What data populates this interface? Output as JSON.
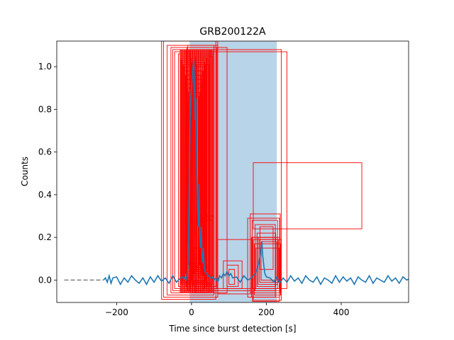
{
  "chart_data": {
    "type": "line",
    "title": "GRB200122A",
    "xlabel": "Time since burst detection [s]",
    "ylabel": "Counts",
    "xlim": [
      -360,
      580
    ],
    "ylim": [
      -0.105,
      1.12
    ],
    "x_ticks": [
      -200,
      0,
      200,
      400
    ],
    "x_tick_labels": [
      "−200",
      "0",
      "200",
      "400"
    ],
    "y_ticks": [
      0.0,
      0.2,
      0.4,
      0.6,
      0.8,
      1.0
    ],
    "y_tick_labels": [
      "0.0",
      "0.2",
      "0.4",
      "0.6",
      "0.8",
      "1.0"
    ],
    "grid": false,
    "legend": "none",
    "shaded_interval": {
      "x": [
        -5,
        228
      ],
      "color": "#b8d4e8"
    },
    "baseline": {
      "x": [
        -340,
        -235
      ],
      "y": 0,
      "style": "dashed",
      "color": "#808080"
    },
    "series": [
      {
        "color": "#1f77b4",
        "points": [
          [
            -235,
            0.0
          ],
          [
            -230,
            0.01
          ],
          [
            -225,
            -0.01
          ],
          [
            -220,
            0.02
          ],
          [
            -215,
            -0.015
          ],
          [
            -210,
            0.01
          ],
          [
            -200,
            0.015
          ],
          [
            -190,
            -0.02
          ],
          [
            -180,
            0.01
          ],
          [
            -170,
            -0.01
          ],
          [
            -160,
            0.02
          ],
          [
            -150,
            0.0
          ],
          [
            -140,
            -0.015
          ],
          [
            -130,
            0.01
          ],
          [
            -120,
            -0.02
          ],
          [
            -110,
            0.015
          ],
          [
            -100,
            -0.01
          ],
          [
            -90,
            0.02
          ],
          [
            -80,
            -0.005
          ],
          [
            -70,
            0.01
          ],
          [
            -60,
            -0.015
          ],
          [
            -50,
            0.02
          ],
          [
            -40,
            -0.01
          ],
          [
            -30,
            0.01
          ],
          [
            -20,
            0.015
          ],
          [
            -15,
            0.0
          ],
          [
            -12,
            0.02
          ],
          [
            -10,
            0.05
          ],
          [
            -8,
            0.2
          ],
          [
            -6,
            0.45
          ],
          [
            -4,
            0.7
          ],
          [
            -2,
            0.85
          ],
          [
            0,
            0.9
          ],
          [
            2,
            0.95
          ],
          [
            4,
            1.0
          ],
          [
            6,
            1.03
          ],
          [
            8,
            0.9
          ],
          [
            10,
            0.75
          ],
          [
            12,
            0.85
          ],
          [
            14,
            0.6
          ],
          [
            16,
            0.35
          ],
          [
            18,
            0.25
          ],
          [
            20,
            0.45
          ],
          [
            22,
            0.2
          ],
          [
            24,
            0.15
          ],
          [
            26,
            0.25
          ],
          [
            28,
            0.12
          ],
          [
            30,
            0.08
          ],
          [
            32,
            0.15
          ],
          [
            34,
            0.06
          ],
          [
            36,
            0.04
          ],
          [
            40,
            0.03
          ],
          [
            45,
            0.02
          ],
          [
            50,
            0.01
          ],
          [
            55,
            0.015
          ],
          [
            60,
            0.0
          ],
          [
            65,
            0.01
          ],
          [
            70,
            -0.01
          ],
          [
            75,
            0.02
          ],
          [
            80,
            0.01
          ],
          [
            85,
            0.03
          ],
          [
            90,
            0.02
          ],
          [
            95,
            0.04
          ],
          [
            100,
            0.02
          ],
          [
            105,
            0.03
          ],
          [
            110,
            0.01
          ],
          [
            120,
            0.015
          ],
          [
            130,
            -0.01
          ],
          [
            140,
            0.02
          ],
          [
            150,
            0.0
          ],
          [
            160,
            0.01
          ],
          [
            165,
            0.02
          ],
          [
            170,
            0.03
          ],
          [
            175,
            0.05
          ],
          [
            180,
            0.08
          ],
          [
            185,
            0.14
          ],
          [
            188,
            0.18
          ],
          [
            190,
            0.12
          ],
          [
            193,
            0.07
          ],
          [
            196,
            0.03
          ],
          [
            200,
            0.015
          ],
          [
            210,
            0.01
          ],
          [
            220,
            -0.01
          ],
          [
            228,
            0.015
          ],
          [
            235,
            -0.015
          ],
          [
            245,
            0.01
          ],
          [
            255,
            -0.01
          ],
          [
            265,
            0.02
          ],
          [
            275,
            -0.005
          ],
          [
            285,
            0.01
          ],
          [
            295,
            -0.015
          ],
          [
            305,
            0.02
          ],
          [
            315,
            0.0
          ],
          [
            325,
            -0.01
          ],
          [
            335,
            0.015
          ],
          [
            345,
            -0.02
          ],
          [
            355,
            0.01
          ],
          [
            365,
            0.0
          ],
          [
            375,
            -0.015
          ],
          [
            385,
            0.02
          ],
          [
            395,
            -0.01
          ],
          [
            405,
            0.015
          ],
          [
            415,
            -0.005
          ],
          [
            425,
            0.01
          ],
          [
            435,
            -0.02
          ],
          [
            445,
            0.015
          ],
          [
            455,
            0.0
          ],
          [
            465,
            -0.01
          ],
          [
            475,
            0.02
          ],
          [
            485,
            -0.015
          ],
          [
            495,
            0.01
          ],
          [
            505,
            0.0
          ],
          [
            515,
            -0.01
          ],
          [
            525,
            0.02
          ],
          [
            535,
            -0.005
          ],
          [
            545,
            0.01
          ],
          [
            555,
            -0.015
          ],
          [
            565,
            0.015
          ],
          [
            575,
            0.0
          ],
          [
            580,
            0.005
          ]
        ]
      }
    ],
    "boxes": {
      "color": "#ff0000",
      "items": [
        [
          -80,
          1.15,
          65,
          -0.09
        ],
        [
          -75,
          1.12,
          70,
          -0.08
        ],
        [
          -65,
          1.1,
          60,
          -0.07
        ],
        [
          -55,
          1.09,
          95,
          -0.06
        ],
        [
          -50,
          1.08,
          240,
          -0.05
        ],
        [
          -45,
          1.07,
          255,
          -0.04
        ],
        [
          -35,
          1.06,
          60,
          -0.03
        ],
        [
          -30,
          1.05,
          55,
          -0.02
        ],
        [
          -28,
          1.04,
          50,
          -0.015
        ],
        [
          -26,
          1.03,
          45,
          -0.01
        ],
        [
          -24,
          1.02,
          40,
          -0.005
        ],
        [
          -22,
          1.01,
          38,
          0.0
        ],
        [
          -20,
          1.0,
          35,
          0.01
        ],
        [
          -18,
          0.98,
          32,
          0.02
        ],
        [
          -16,
          0.96,
          30,
          0.03
        ],
        [
          -14,
          0.94,
          28,
          0.04
        ],
        [
          -12,
          0.92,
          26,
          0.05
        ],
        [
          -10,
          0.9,
          24,
          0.06
        ],
        [
          -8,
          0.88,
          22,
          0.07
        ],
        [
          -6,
          0.86,
          20,
          0.08
        ],
        [
          -5,
          1.08,
          50,
          -0.03
        ],
        [
          -3,
          1.06,
          45,
          -0.02
        ],
        [
          -1,
          1.04,
          40,
          -0.01
        ],
        [
          1,
          1.02,
          35,
          0.0
        ],
        [
          3,
          1.0,
          30,
          0.01
        ],
        [
          5,
          0.98,
          28,
          0.02
        ],
        [
          7,
          0.96,
          26,
          0.03
        ],
        [
          -10,
          1.1,
          70,
          -0.05
        ],
        [
          -12,
          1.09,
          68,
          -0.04
        ],
        [
          -14,
          1.08,
          66,
          -0.03
        ],
        [
          10,
          1.05,
          50,
          0.02
        ],
        [
          12,
          1.03,
          48,
          0.03
        ],
        [
          14,
          1.01,
          46,
          0.04
        ],
        [
          15,
          0.3,
          60,
          0.02
        ],
        [
          20,
          0.28,
          55,
          0.01
        ],
        [
          5,
          0.15,
          40,
          -0.03
        ],
        [
          0,
          0.1,
          35,
          -0.04
        ],
        [
          -5,
          0.08,
          30,
          -0.05
        ],
        [
          10,
          0.06,
          45,
          -0.06
        ],
        [
          70,
          0.19,
          160,
          -0.065
        ],
        [
          85,
          0.09,
          135,
          -0.04
        ],
        [
          95,
          0.07,
          125,
          -0.03
        ],
        [
          100,
          0.05,
          115,
          -0.02
        ],
        [
          150,
          0.29,
          235,
          -0.08
        ],
        [
          157,
          0.31,
          237,
          -0.06
        ],
        [
          162,
          0.28,
          230,
          -0.04
        ],
        [
          163,
          0.2,
          235,
          -0.1
        ],
        [
          170,
          0.26,
          224,
          -0.05
        ],
        [
          175,
          0.22,
          225,
          -0.03
        ],
        [
          178,
          0.2,
          230,
          -0.02
        ],
        [
          182,
          0.19,
          232,
          -0.01
        ],
        [
          186,
          0.18,
          228,
          0.0
        ],
        [
          183,
          0.25,
          218,
          0.05
        ],
        [
          165,
          0.19,
          240,
          -0.095
        ],
        [
          168,
          0.17,
          238,
          -0.07
        ],
        [
          172,
          0.15,
          234,
          -0.04
        ],
        [
          160,
          0.2,
          224,
          -0.08
        ],
        [
          165,
          0.55,
          455,
          0.24
        ]
      ]
    }
  }
}
